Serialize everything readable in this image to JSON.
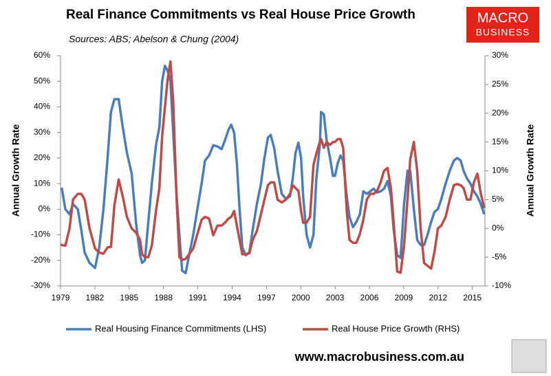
{
  "chart_data": {
    "type": "line",
    "title": "Real Finance Commitments vs Real House Price Growth",
    "subtitle": "Sources: ABS; Abelson & Chung (2004)",
    "logo": [
      "MACRO",
      "BUSINESS"
    ],
    "footer": "www.macrobusiness.com.au",
    "y_label": "Annual Growth Rate",
    "y2_label": "Annual Growth Rate",
    "x": [
      1979.0,
      1979.12,
      1979.42,
      1979.79,
      1980.09,
      1980.51,
      1980.81,
      1981.11,
      1981.54,
      1982.02,
      1982.38,
      1982.75,
      1983.11,
      1983.41,
      1983.71,
      1984.08,
      1984.44,
      1984.8,
      1985.22,
      1985.59,
      1985.95,
      1986.13,
      1986.37,
      1986.67,
      1986.98,
      1987.34,
      1987.64,
      1987.88,
      1988.12,
      1988.37,
      1988.61,
      1988.85,
      1989.15,
      1989.39,
      1989.63,
      1989.94,
      1990.24,
      1990.6,
      1990.96,
      1991.33,
      1991.63,
      1991.99,
      1992.35,
      1992.72,
      1993.08,
      1993.38,
      1993.68,
      1993.92,
      1994.17,
      1994.41,
      1994.65,
      1994.89,
      1995.19,
      1995.5,
      1995.8,
      1996.16,
      1996.52,
      1996.82,
      1997.13,
      1997.37,
      1997.67,
      1997.97,
      1998.34,
      1998.7,
      1999.06,
      1999.3,
      1999.54,
      1999.79,
      2000.03,
      2000.21,
      2000.51,
      2000.81,
      2001.11,
      2001.36,
      2001.66,
      2001.78,
      2002.02,
      2002.26,
      2002.56,
      2002.81,
      2002.99,
      2003.23,
      2003.47,
      2003.71,
      2004.02,
      2004.26,
      2004.56,
      2004.86,
      2005.16,
      2005.47,
      2005.77,
      2006.07,
      2006.37,
      2006.67,
      2006.98,
      2007.28,
      2007.58,
      2007.88,
      2008.12,
      2008.43,
      2008.73,
      2009.03,
      2009.33,
      2009.57,
      2009.88,
      2010.18,
      2010.48,
      2010.78,
      2011.08,
      2011.39,
      2011.69,
      2011.99,
      2012.29,
      2012.66,
      2013.02,
      2013.38,
      2013.68,
      2013.98,
      2014.23,
      2014.53,
      2014.83,
      2015.13,
      2015.44,
      2015.74,
      2016.04
    ],
    "series": [
      {
        "name": "Real Housing Finance Commitments (LHS)",
        "color": "#4a7ebb",
        "axis": "y",
        "values": [
          8,
          8,
          0,
          -2,
          2,
          0,
          -8,
          -17,
          -21,
          -23,
          -15,
          0,
          20,
          38,
          43,
          43,
          32,
          22,
          14,
          -5,
          -18,
          -21,
          -20,
          -5,
          10,
          25,
          32,
          50,
          56,
          54,
          50,
          30,
          5,
          -10,
          -24,
          -25,
          -18,
          -10,
          0,
          10,
          19,
          21,
          25,
          24.5,
          23.5,
          27,
          31,
          33,
          30,
          18,
          0,
          -15,
          -18,
          -17,
          -8,
          2,
          10,
          20,
          28,
          29,
          24,
          15,
          6,
          4,
          5,
          12,
          22,
          26,
          20,
          5,
          -10,
          -15,
          -10,
          12,
          25,
          38,
          37,
          27,
          20,
          13,
          13,
          18,
          21,
          19,
          5,
          -3,
          -7,
          -5,
          -2,
          7,
          6,
          7,
          8,
          6.5,
          7,
          8,
          11,
          5,
          -8,
          -18,
          -19,
          2,
          15,
          15,
          0,
          -12,
          -14,
          -14,
          -10,
          -5,
          -1,
          0,
          4,
          10,
          15,
          19,
          20,
          19,
          15,
          12,
          10,
          7,
          5,
          2,
          -2
        ]
      },
      {
        "name": "Real House Price Growth (RHS)",
        "color": "#be4b48",
        "axis": "y2",
        "values": [
          -2.8,
          -2.9,
          -3,
          0,
          5,
          6,
          6,
          5,
          0,
          -3.5,
          -4.2,
          -4.4,
          -3.3,
          -3.2,
          4,
          8.5,
          5.5,
          2,
          0,
          -0.7,
          -2,
          -4.5,
          -5,
          -5,
          -3,
          3,
          7,
          16,
          21,
          26,
          29,
          22,
          5,
          -5,
          -5.5,
          -5.3,
          -4.5,
          -3.5,
          -1,
          1.5,
          2,
          1.7,
          -1.2,
          0.5,
          0.5,
          1,
          1.7,
          2,
          3,
          0.5,
          -2,
          -4.5,
          -4.5,
          -4.3,
          -2,
          -0.5,
          2.5,
          5,
          7.5,
          8,
          8,
          5,
          4.5,
          5,
          6,
          7.5,
          7,
          6.5,
          3,
          1,
          1,
          2,
          11,
          13,
          15,
          15.5,
          14,
          15,
          14.5,
          15,
          15,
          15.5,
          15.5,
          14,
          3,
          -2,
          -2.5,
          -2.5,
          -1,
          1.5,
          5,
          6,
          6,
          6.5,
          8,
          10,
          10.5,
          7,
          1,
          -7.5,
          -7.7,
          -3,
          5,
          12,
          15,
          10,
          0,
          -6,
          -6.5,
          -7,
          -4,
          0,
          0.5,
          2,
          5,
          7.5,
          7.7,
          7.5,
          7,
          5,
          5,
          8,
          9.5,
          6,
          3.5
        ]
      }
    ],
    "xlim": [
      1979,
      2016.1
    ],
    "xticks": [
      1979,
      1982,
      1985,
      1988,
      1991,
      1994,
      1997,
      2000,
      2003,
      2006,
      2009,
      2012,
      2015
    ],
    "ylim": [
      -30,
      60
    ],
    "yticks": [
      {
        "value": -30,
        "label": "-30%"
      },
      {
        "value": -20,
        "label": "-20%"
      },
      {
        "value": -10,
        "label": "-10%"
      },
      {
        "value": 0,
        "label": "0%"
      },
      {
        "value": 10,
        "label": "10%"
      },
      {
        "value": 20,
        "label": "20%"
      },
      {
        "value": 30,
        "label": "30%"
      },
      {
        "value": 40,
        "label": "40%"
      },
      {
        "value": 50,
        "label": "50%"
      },
      {
        "value": 60,
        "label": "60%"
      }
    ],
    "y2lim": [
      -10,
      30
    ],
    "y2ticks": [
      {
        "value": -10,
        "label": "-10%"
      },
      {
        "value": -5,
        "label": "-5%"
      },
      {
        "value": 0,
        "label": "0%"
      },
      {
        "value": 5,
        "label": "5%"
      },
      {
        "value": 10,
        "label": "10%"
      },
      {
        "value": 15,
        "label": "15%"
      },
      {
        "value": 20,
        "label": "20%"
      },
      {
        "value": 25,
        "label": "25%"
      },
      {
        "value": 30,
        "label": "30%"
      }
    ],
    "grid": false
  }
}
